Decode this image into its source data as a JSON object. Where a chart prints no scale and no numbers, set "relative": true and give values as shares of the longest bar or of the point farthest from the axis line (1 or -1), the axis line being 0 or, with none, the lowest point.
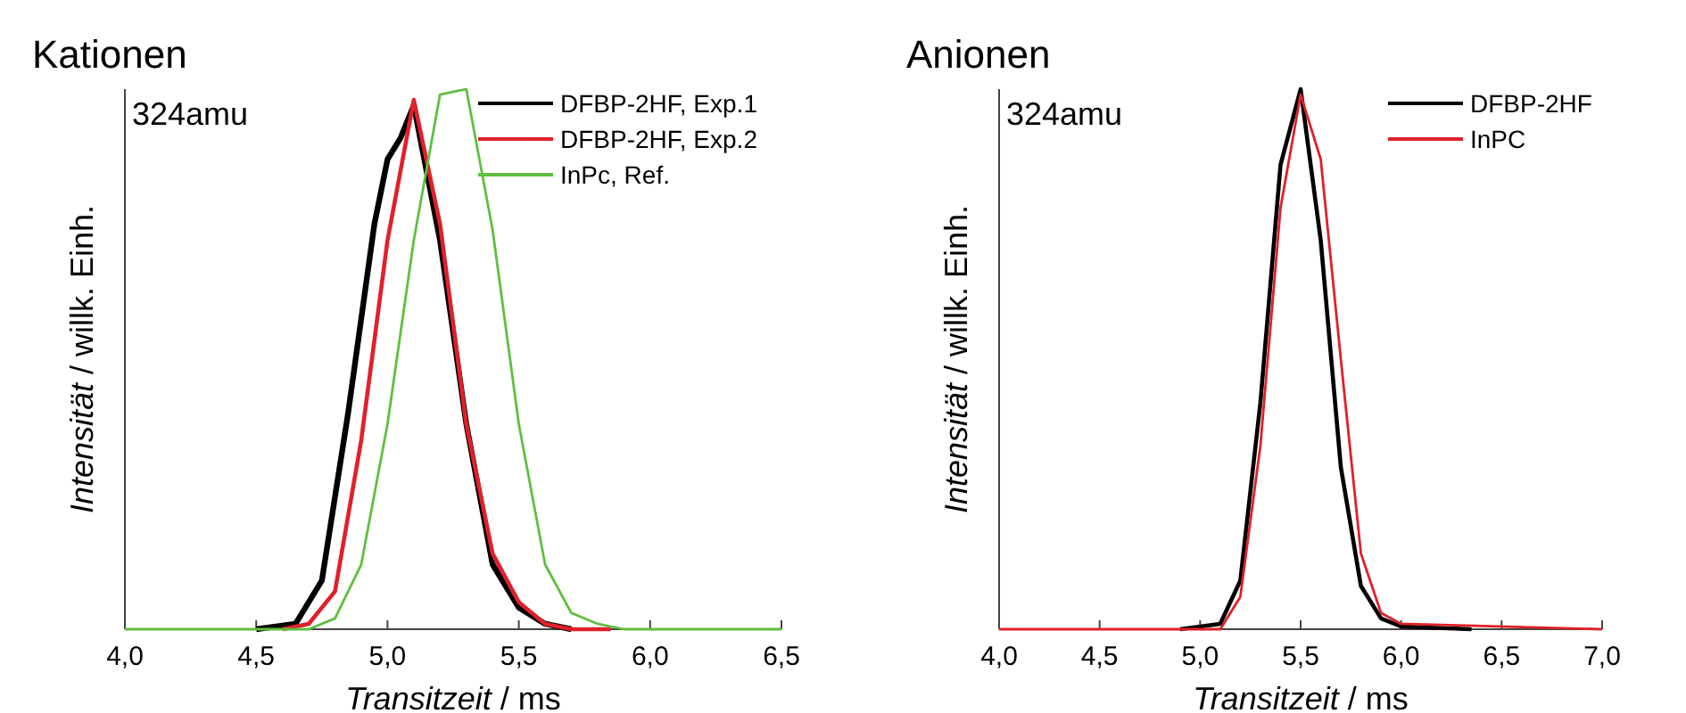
{
  "chart_data": [
    {
      "type": "line",
      "title": "Kationen",
      "xlabel": "Transitzeit / ms",
      "ylabel": "Intensität / willk. Einh.",
      "annotations": [
        "324amu"
      ],
      "relative": true,
      "tick_labels": "x",
      "legend": "top right",
      "xlim": [
        4.0,
        6.5
      ],
      "xticks": [
        {
          "value": 4.0,
          "label": "4,0"
        },
        {
          "value": 4.5,
          "label": "4,5"
        },
        {
          "value": 5.0,
          "label": "5,0"
        },
        {
          "value": 5.5,
          "label": "5,5"
        },
        {
          "value": 6.0,
          "label": "6,0"
        },
        {
          "value": 6.5,
          "label": "6,5"
        }
      ],
      "series": [
        {
          "name": "DFBP-2HF, Exp.1",
          "color": "#000000",
          "x": [
            4.5,
            4.65,
            4.75,
            4.85,
            4.95,
            5.0,
            5.05,
            5.1,
            5.2,
            5.3,
            5.4,
            5.5,
            5.6,
            5.7
          ],
          "values": [
            0,
            0.01,
            0.09,
            0.4,
            0.75,
            0.87,
            0.91,
            0.97,
            0.72,
            0.38,
            0.12,
            0.04,
            0.01,
            0
          ]
        },
        {
          "name": "DFBP-2HF, Exp.2",
          "color": "#e0202a",
          "x": [
            4.6,
            4.7,
            4.8,
            4.9,
            5.0,
            5.05,
            5.1,
            5.2,
            5.3,
            5.4,
            5.5,
            5.6,
            5.7,
            5.85
          ],
          "values": [
            0,
            0.01,
            0.07,
            0.35,
            0.72,
            0.85,
            0.98,
            0.75,
            0.38,
            0.14,
            0.05,
            0.01,
            0,
            0
          ]
        },
        {
          "name": "InPc, Ref.",
          "color": "#5fbf3f",
          "x": [
            4.0,
            4.7,
            4.8,
            4.9,
            5.0,
            5.1,
            5.2,
            5.3,
            5.4,
            5.5,
            5.6,
            5.7,
            5.8,
            5.9,
            6.5
          ],
          "values": [
            0,
            0,
            0.02,
            0.12,
            0.38,
            0.72,
            0.99,
            1,
            0.74,
            0.38,
            0.12,
            0.03,
            0.01,
            0,
            0
          ]
        }
      ]
    },
    {
      "type": "line",
      "title": "Anionen",
      "xlabel": "Transitzeit / ms",
      "ylabel": "Intensität / willk. Einh.",
      "annotations": [
        "324amu"
      ],
      "relative": true,
      "tick_labels": "x",
      "legend": "top right",
      "xlim": [
        4.0,
        7.0
      ],
      "xticks": [
        {
          "value": 4.0,
          "label": "4,0"
        },
        {
          "value": 4.5,
          "label": "4,5"
        },
        {
          "value": 5.0,
          "label": "5,0"
        },
        {
          "value": 5.5,
          "label": "5,5"
        },
        {
          "value": 6.0,
          "label": "6,0"
        },
        {
          "value": 6.5,
          "label": "6,5"
        },
        {
          "value": 7.0,
          "label": "7,0"
        }
      ],
      "series": [
        {
          "name": "DFBP-2HF",
          "color": "#000000",
          "x": [
            4.9,
            5.1,
            5.2,
            5.3,
            5.4,
            5.5,
            5.6,
            5.7,
            5.8,
            5.9,
            6.0,
            6.35
          ],
          "values": [
            0,
            0.01,
            0.09,
            0.42,
            0.86,
            1,
            0.72,
            0.3,
            0.08,
            0.02,
            0.005,
            0
          ]
        },
        {
          "name": "InPC",
          "color": "#e0202a",
          "x": [
            4.0,
            5.1,
            5.2,
            5.3,
            5.4,
            5.5,
            5.6,
            5.7,
            5.8,
            5.9,
            6.0,
            7.0
          ],
          "values": [
            0,
            0,
            0.06,
            0.34,
            0.78,
            0.99,
            0.87,
            0.5,
            0.14,
            0.03,
            0.01,
            0
          ]
        }
      ]
    }
  ]
}
